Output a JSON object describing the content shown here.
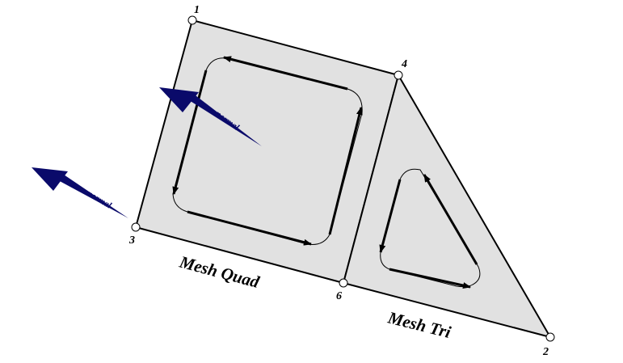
{
  "colors": {
    "face_fill": "#e1e1e1",
    "edge": "#000000",
    "normal_arrow": "#0a0a6a",
    "vertex_fill": "#ffffff"
  },
  "vertices": [
    {
      "id": "1",
      "label": "1"
    },
    {
      "id": "2",
      "label": "2"
    },
    {
      "id": "3",
      "label": "3"
    },
    {
      "id": "4",
      "label": "4"
    },
    {
      "id": "6",
      "label": "6"
    }
  ],
  "faces": {
    "quad": {
      "label": "Mesh Quad",
      "vertex_order": [
        "1",
        "4",
        "6",
        "3"
      ]
    },
    "tri": {
      "label": "Mesh Tri",
      "vertex_order": [
        "4",
        "2",
        "6"
      ]
    }
  },
  "normals": [
    {
      "label": "normal",
      "face": "quad"
    },
    {
      "label": "normal",
      "at_vertex": "3"
    }
  ]
}
